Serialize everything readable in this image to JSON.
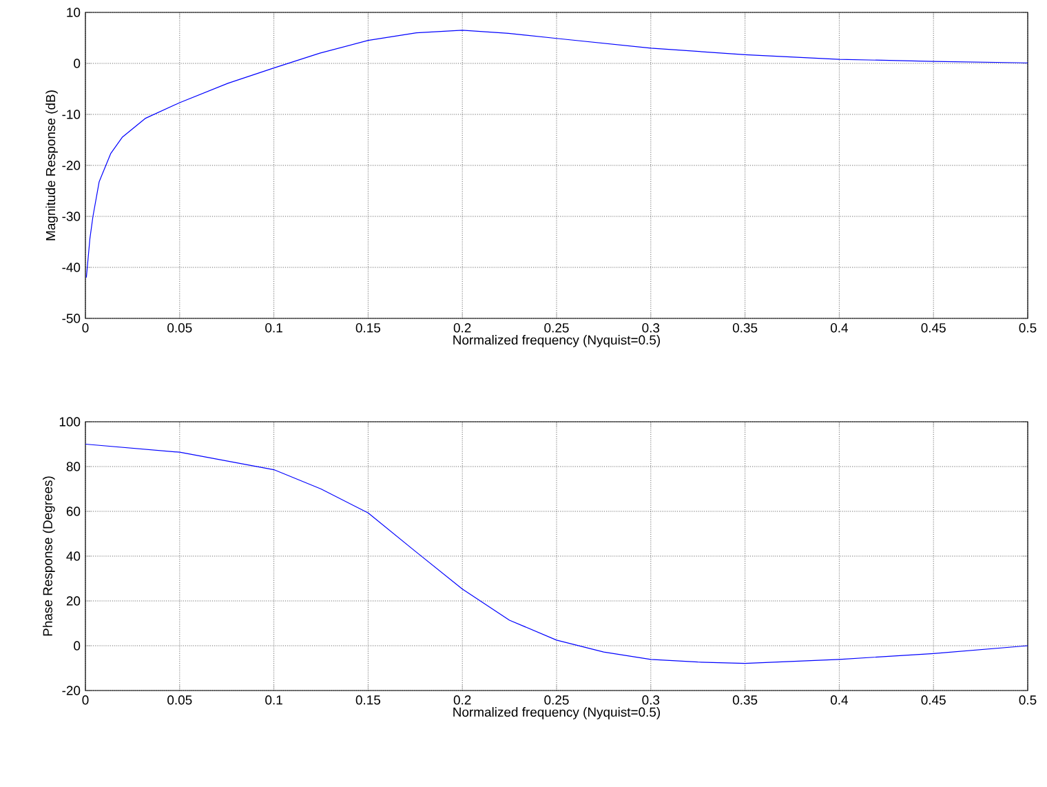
{
  "chart_data": [
    {
      "type": "line",
      "xlabel": "Normalized frequency (Nyquist=0.5)",
      "ylabel": "Magnitude Response (dB)",
      "xlim": [
        0,
        0.5
      ],
      "ylim": [
        -50,
        10
      ],
      "xticks": [
        0,
        0.05,
        0.1,
        0.15,
        0.2,
        0.25,
        0.3,
        0.35,
        0.4,
        0.45,
        0.5
      ],
      "yticks": [
        -50,
        -40,
        -30,
        -20,
        -10,
        0,
        10
      ],
      "grid": true,
      "series": [
        {
          "color": "#0000ff",
          "x": [
            0.0005,
            0.0024,
            0.004,
            0.0073,
            0.0134,
            0.0195,
            0.0317,
            0.05,
            0.0756,
            0.1,
            0.1244,
            0.15,
            0.1756,
            0.2,
            0.2244,
            0.25,
            0.3,
            0.35,
            0.4,
            0.45,
            0.5
          ],
          "values": [
            -42,
            -34.3,
            -30,
            -23.2,
            -17.7,
            -14.5,
            -10.8,
            -7.7,
            -3.9,
            -0.9,
            2,
            4.5,
            6,
            6.5,
            5.9,
            4.9,
            3,
            1.7,
            0.8,
            0.4,
            0.1
          ]
        }
      ]
    },
    {
      "type": "line",
      "xlabel": "Normalized frequency (Nyquist=0.5)",
      "ylabel": "Phase Response (Degrees)",
      "xlim": [
        0,
        0.5
      ],
      "ylim": [
        -20,
        100
      ],
      "xticks": [
        0,
        0.05,
        0.1,
        0.15,
        0.2,
        0.25,
        0.3,
        0.35,
        0.4,
        0.45,
        0.5
      ],
      "yticks": [
        -20,
        0,
        20,
        40,
        60,
        80,
        100
      ],
      "grid": true,
      "series": [
        {
          "color": "#0000ff",
          "x": [
            0,
            0.05,
            0.1,
            0.125,
            0.15,
            0.175,
            0.2,
            0.225,
            0.25,
            0.275,
            0.3,
            0.325,
            0.35,
            0.4,
            0.45,
            0.5
          ],
          "values": [
            90,
            86.4,
            78.6,
            70,
            59.3,
            42.2,
            25.3,
            11.4,
            2.5,
            -2.8,
            -6.1,
            -7.3,
            -7.9,
            -6.1,
            -3.5,
            0
          ]
        }
      ]
    }
  ]
}
